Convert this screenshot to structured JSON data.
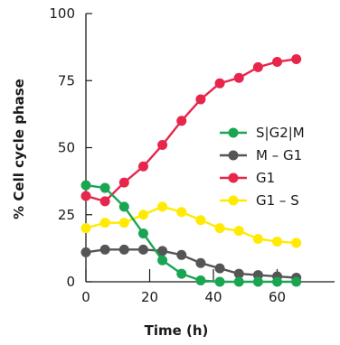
{
  "chart_data": {
    "type": "line",
    "xlabel": "Time (h)",
    "ylabel": "% Cell cycle phase",
    "xlim": [
      0,
      78
    ],
    "ylim": [
      0,
      100
    ],
    "xticks": [
      0,
      20,
      40,
      60
    ],
    "yticks": [
      0,
      25,
      50,
      75,
      100
    ],
    "grid": false,
    "legend_position": "right",
    "x": [
      0,
      6,
      12,
      18,
      24,
      30,
      36,
      42,
      48,
      54,
      60,
      66
    ],
    "series": [
      {
        "name": "S|G2|M",
        "color": "#1aa552",
        "values": [
          36,
          35,
          28,
          18,
          8,
          3,
          0.5,
          0,
          0,
          0,
          0,
          0
        ]
      },
      {
        "name": "M – G1",
        "color": "#555555",
        "values": [
          11,
          12,
          12,
          12,
          11.5,
          10,
          7,
          5,
          3,
          2.5,
          2,
          1.5
        ]
      },
      {
        "name": "G1",
        "color": "#e8254b",
        "values": [
          32,
          30,
          37,
          43,
          51,
          60,
          68,
          74,
          76,
          80,
          82,
          83
        ]
      },
      {
        "name": "G1 – S",
        "color": "#ffea00",
        "values": [
          20,
          22,
          22,
          25,
          28,
          26,
          23,
          20,
          19,
          16,
          15,
          14.5
        ]
      }
    ]
  }
}
